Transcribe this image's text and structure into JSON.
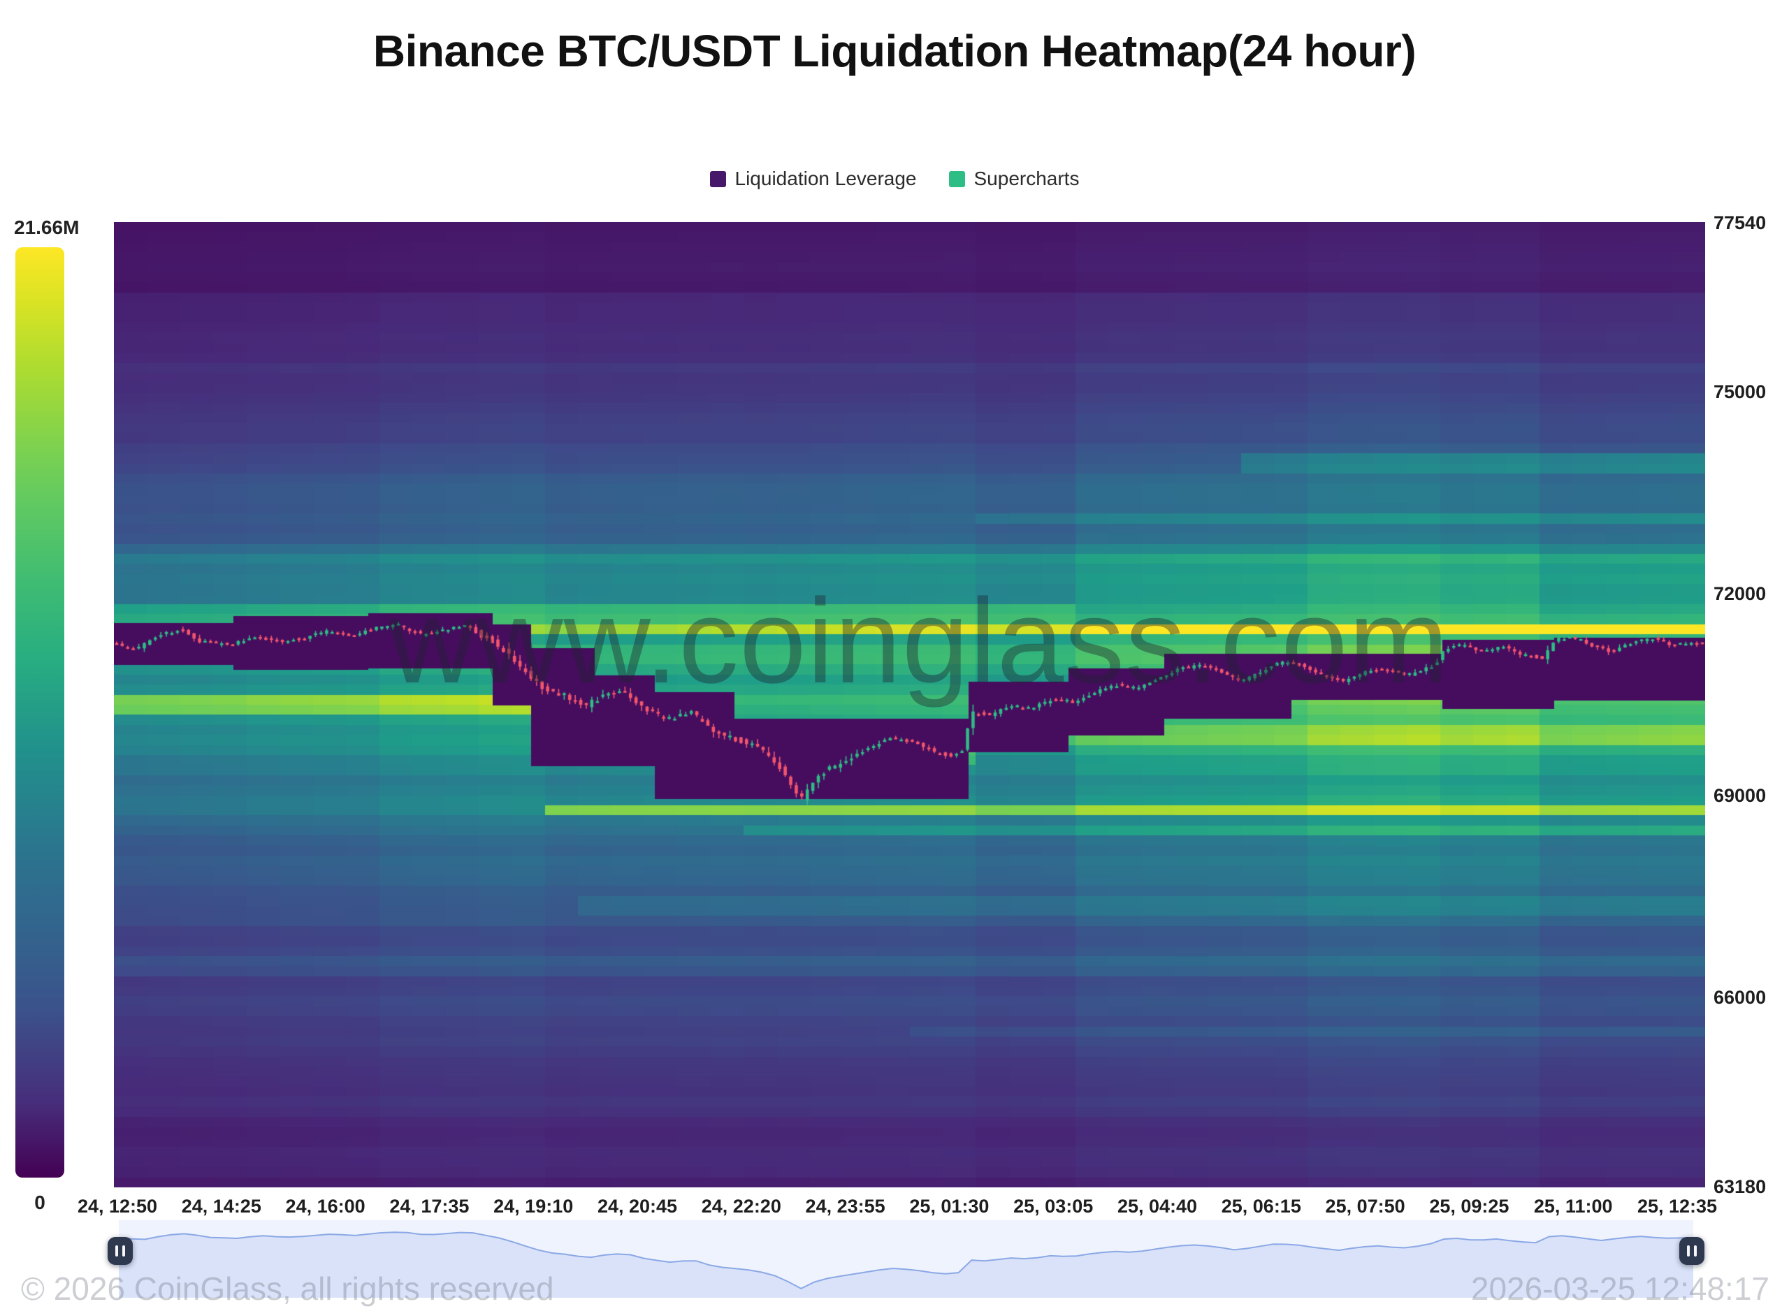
{
  "title": "Binance BTC/USDT Liquidation Heatmap(24 hour)",
  "legend": {
    "items": [
      {
        "label": "Liquidation Leverage",
        "color": "#471769"
      },
      {
        "label": "Supercharts",
        "color": "#2ebd85"
      }
    ]
  },
  "colorbar": {
    "max_label": "21.66M",
    "min_label": "0",
    "scheme": "viridis"
  },
  "watermark": "www.coinglass.com",
  "footer": {
    "copyright": "© 2026 CoinGlass, all rights reserved",
    "timestamp": "2026-03-25 12:48:17"
  },
  "chart_data": {
    "type": "heatmap",
    "title": "Binance BTC/USDT Liquidation Heatmap(24 hour)",
    "subtitle_series": [
      "Liquidation Leverage",
      "Supercharts"
    ],
    "price_axis": {
      "ticks": [
        77540,
        75000,
        72000,
        69000,
        66000,
        63180
      ],
      "range": [
        63180,
        77540
      ]
    },
    "time_axis": {
      "ticks": [
        "24, 12:50",
        "24, 14:25",
        "24, 16:00",
        "24, 17:35",
        "24, 19:10",
        "24, 20:45",
        "24, 22:20",
        "24, 23:55",
        "25, 01:30",
        "25, 03:05",
        "25, 04:40",
        "25, 06:15",
        "25, 07:50",
        "25, 09:25",
        "25, 11:00",
        "25, 12:35"
      ]
    },
    "colorbar": {
      "max_value_label": "21.66M",
      "min_value_label": "0"
    },
    "grid": {
      "cols": 48,
      "rows": 96
    },
    "price_path": [
      [
        0.0,
        71280
      ],
      [
        0.015,
        71180
      ],
      [
        0.03,
        71400
      ],
      [
        0.045,
        71480
      ],
      [
        0.055,
        71300
      ],
      [
        0.075,
        71250
      ],
      [
        0.09,
        71380
      ],
      [
        0.105,
        71300
      ],
      [
        0.12,
        71350
      ],
      [
        0.135,
        71450
      ],
      [
        0.15,
        71380
      ],
      [
        0.165,
        71500
      ],
      [
        0.18,
        71550
      ],
      [
        0.195,
        71400
      ],
      [
        0.21,
        71480
      ],
      [
        0.222,
        71550
      ],
      [
        0.232,
        71400
      ],
      [
        0.24,
        71300
      ],
      [
        0.252,
        71050
      ],
      [
        0.262,
        70800
      ],
      [
        0.272,
        70600
      ],
      [
        0.285,
        70500
      ],
      [
        0.298,
        70350
      ],
      [
        0.31,
        70500
      ],
      [
        0.322,
        70550
      ],
      [
        0.335,
        70300
      ],
      [
        0.35,
        70150
      ],
      [
        0.365,
        70250
      ],
      [
        0.378,
        69950
      ],
      [
        0.392,
        69850
      ],
      [
        0.405,
        69750
      ],
      [
        0.418,
        69500
      ],
      [
        0.428,
        69150
      ],
      [
        0.433,
        68920
      ],
      [
        0.44,
        69200
      ],
      [
        0.45,
        69400
      ],
      [
        0.462,
        69550
      ],
      [
        0.475,
        69700
      ],
      [
        0.49,
        69870
      ],
      [
        0.505,
        69800
      ],
      [
        0.518,
        69650
      ],
      [
        0.528,
        69600
      ],
      [
        0.536,
        69700
      ],
      [
        0.54,
        70250
      ],
      [
        0.552,
        70200
      ],
      [
        0.565,
        70350
      ],
      [
        0.578,
        70300
      ],
      [
        0.592,
        70450
      ],
      [
        0.605,
        70400
      ],
      [
        0.618,
        70550
      ],
      [
        0.632,
        70650
      ],
      [
        0.645,
        70600
      ],
      [
        0.658,
        70750
      ],
      [
        0.672,
        70900
      ],
      [
        0.685,
        70950
      ],
      [
        0.698,
        70850
      ],
      [
        0.71,
        70700
      ],
      [
        0.722,
        70850
      ],
      [
        0.735,
        71000
      ],
      [
        0.748,
        70950
      ],
      [
        0.762,
        70800
      ],
      [
        0.775,
        70700
      ],
      [
        0.788,
        70850
      ],
      [
        0.8,
        70900
      ],
      [
        0.815,
        70800
      ],
      [
        0.832,
        70950
      ],
      [
        0.838,
        71200
      ],
      [
        0.85,
        71250
      ],
      [
        0.862,
        71150
      ],
      [
        0.875,
        71220
      ],
      [
        0.888,
        71100
      ],
      [
        0.9,
        71050
      ],
      [
        0.907,
        71320
      ],
      [
        0.918,
        71380
      ],
      [
        0.93,
        71250
      ],
      [
        0.942,
        71150
      ],
      [
        0.955,
        71280
      ],
      [
        0.968,
        71350
      ],
      [
        0.98,
        71250
      ],
      [
        1.0,
        71280
      ]
    ],
    "liquidation_bands": [
      {
        "price": 71480,
        "halfwidth": 85,
        "from": 0.0,
        "to": 1.0,
        "strength_start": 0.22,
        "strength_end": 0.58
      },
      {
        "price": 71780,
        "halfwidth": 150,
        "from": 0.0,
        "to": 0.6,
        "strength_start": 0.13,
        "strength_end": 0.16
      },
      {
        "price": 72400,
        "halfwidth": 200,
        "from": 0.0,
        "to": 1.0,
        "strength_start": 0.05,
        "strength_end": 0.09
      },
      {
        "price": 70380,
        "halfwidth": 115,
        "from": 0.0,
        "to": 0.295,
        "strength_start": 0.3,
        "strength_end": 0.3
      },
      {
        "price": 69960,
        "halfwidth": 140,
        "from": 0.555,
        "to": 1.0,
        "strength_start": 0.16,
        "strength_end": 0.24
      },
      {
        "price": 68840,
        "halfwidth": 70,
        "from": 0.262,
        "to": 1.0,
        "strength_start": 0.4,
        "strength_end": 0.36
      },
      {
        "price": 68500,
        "halfwidth": 130,
        "from": 0.39,
        "to": 1.0,
        "strength_start": 0.1,
        "strength_end": 0.15
      },
      {
        "price": 69580,
        "halfwidth": 110,
        "from": 0.39,
        "to": 0.545,
        "strength_start": 0.16,
        "strength_end": 0.16
      },
      {
        "price": 73950,
        "halfwidth": 130,
        "from": 0.7,
        "to": 1.0,
        "strength_start": 0.1,
        "strength_end": 0.16
      },
      {
        "price": 73100,
        "halfwidth": 110,
        "from": 0.55,
        "to": 1.0,
        "strength_start": 0.06,
        "strength_end": 0.1
      },
      {
        "price": 67350,
        "halfwidth": 160,
        "from": 0.3,
        "to": 1.0,
        "strength_start": 0.05,
        "strength_end": 0.08
      },
      {
        "price": 66450,
        "halfwidth": 140,
        "from": 0.0,
        "to": 1.0,
        "strength_start": 0.05,
        "strength_end": 0.07
      },
      {
        "price": 65500,
        "halfwidth": 120,
        "from": 0.5,
        "to": 1.0,
        "strength_start": 0.04,
        "strength_end": 0.06
      }
    ],
    "cleared_zones": [
      [
        0.0,
        0.075,
        71580,
        70950
      ],
      [
        0.075,
        0.16,
        71680,
        70880
      ],
      [
        0.16,
        0.238,
        71720,
        70900
      ],
      [
        0.238,
        0.262,
        71550,
        70350
      ],
      [
        0.262,
        0.302,
        71200,
        69450
      ],
      [
        0.302,
        0.34,
        70800,
        69450
      ],
      [
        0.34,
        0.39,
        70550,
        68960
      ],
      [
        0.39,
        0.537,
        70150,
        68960
      ],
      [
        0.537,
        0.6,
        70700,
        69650
      ],
      [
        0.6,
        0.66,
        70900,
        69900
      ],
      [
        0.66,
        0.74,
        71120,
        70150
      ],
      [
        0.74,
        0.835,
        71120,
        70430
      ],
      [
        0.835,
        0.905,
        71330,
        70300
      ],
      [
        0.905,
        1.0,
        71360,
        70420
      ]
    ],
    "candles": {
      "count": 288,
      "up_color": "#2ebd85",
      "down_color": "#f4566b",
      "seed": 11
    },
    "zone_color": "#460d5f"
  },
  "navigator": {
    "left_handle": "pause",
    "right_handle": "pause"
  }
}
